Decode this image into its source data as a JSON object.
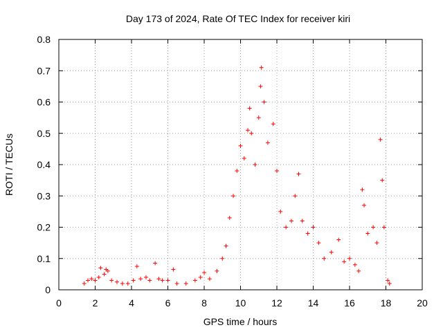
{
  "chart_data": {
    "type": "scatter",
    "title": "Day 173 of 2024, Rate Of TEC Index for receiver kiri",
    "xlabel": "GPS time / hours",
    "ylabel": "ROTI / TECUs",
    "xlim": [
      0,
      20
    ],
    "ylim": [
      0,
      0.8
    ],
    "xticks": [
      "0",
      "2",
      "4",
      "6",
      "8",
      "10",
      "12",
      "14",
      "16",
      "18",
      "20"
    ],
    "yticks": [
      "0",
      "0.1",
      "0.2",
      "0.3",
      "0.4",
      "0.5",
      "0.6",
      "0.7",
      "0.8"
    ],
    "grid": true,
    "marker": "+",
    "series_color": "#ff0000",
    "series": [
      {
        "name": "ROTI",
        "notes": "dense band; representative points read from the plot",
        "points": [
          [
            1.4,
            0.02
          ],
          [
            1.6,
            0.03
          ],
          [
            1.8,
            0.035
          ],
          [
            2.0,
            0.03
          ],
          [
            2.2,
            0.04
          ],
          [
            2.3,
            0.07
          ],
          [
            2.5,
            0.05
          ],
          [
            2.6,
            0.065
          ],
          [
            2.7,
            0.06
          ],
          [
            2.9,
            0.03
          ],
          [
            3.2,
            0.025
          ],
          [
            3.5,
            0.02
          ],
          [
            3.8,
            0.02
          ],
          [
            4.1,
            0.03
          ],
          [
            4.3,
            0.075
          ],
          [
            4.5,
            0.035
          ],
          [
            4.8,
            0.04
          ],
          [
            5.0,
            0.03
          ],
          [
            5.3,
            0.085
          ],
          [
            5.5,
            0.035
          ],
          [
            5.7,
            0.03
          ],
          [
            6.0,
            0.03
          ],
          [
            6.3,
            0.065
          ],
          [
            6.5,
            0.02
          ],
          [
            7.0,
            0.02
          ],
          [
            7.5,
            0.03
          ],
          [
            7.8,
            0.04
          ],
          [
            8.0,
            0.055
          ],
          [
            8.3,
            0.035
          ],
          [
            8.7,
            0.06
          ],
          [
            9.0,
            0.1
          ],
          [
            9.2,
            0.14
          ],
          [
            9.4,
            0.23
          ],
          [
            9.6,
            0.3
          ],
          [
            9.8,
            0.38
          ],
          [
            10.0,
            0.46
          ],
          [
            10.2,
            0.42
          ],
          [
            10.4,
            0.51
          ],
          [
            10.5,
            0.58
          ],
          [
            10.6,
            0.5
          ],
          [
            10.8,
            0.4
          ],
          [
            11.0,
            0.55
          ],
          [
            11.1,
            0.65
          ],
          [
            11.15,
            0.71
          ],
          [
            11.3,
            0.6
          ],
          [
            11.5,
            0.47
          ],
          [
            11.8,
            0.53
          ],
          [
            12.0,
            0.38
          ],
          [
            12.2,
            0.25
          ],
          [
            12.5,
            0.2
          ],
          [
            12.8,
            0.22
          ],
          [
            13.0,
            0.3
          ],
          [
            13.2,
            0.37
          ],
          [
            13.4,
            0.22
          ],
          [
            13.7,
            0.18
          ],
          [
            14.0,
            0.2
          ],
          [
            14.3,
            0.15
          ],
          [
            14.6,
            0.1
          ],
          [
            15.0,
            0.12
          ],
          [
            15.4,
            0.16
          ],
          [
            15.7,
            0.09
          ],
          [
            16.0,
            0.1
          ],
          [
            16.3,
            0.08
          ],
          [
            16.5,
            0.06
          ],
          [
            16.7,
            0.32
          ],
          [
            16.8,
            0.27
          ],
          [
            17.0,
            0.18
          ],
          [
            17.3,
            0.2
          ],
          [
            17.5,
            0.15
          ],
          [
            17.7,
            0.48
          ],
          [
            17.8,
            0.35
          ],
          [
            17.9,
            0.2
          ],
          [
            18.1,
            0.03
          ],
          [
            18.2,
            0.02
          ]
        ]
      }
    ]
  }
}
